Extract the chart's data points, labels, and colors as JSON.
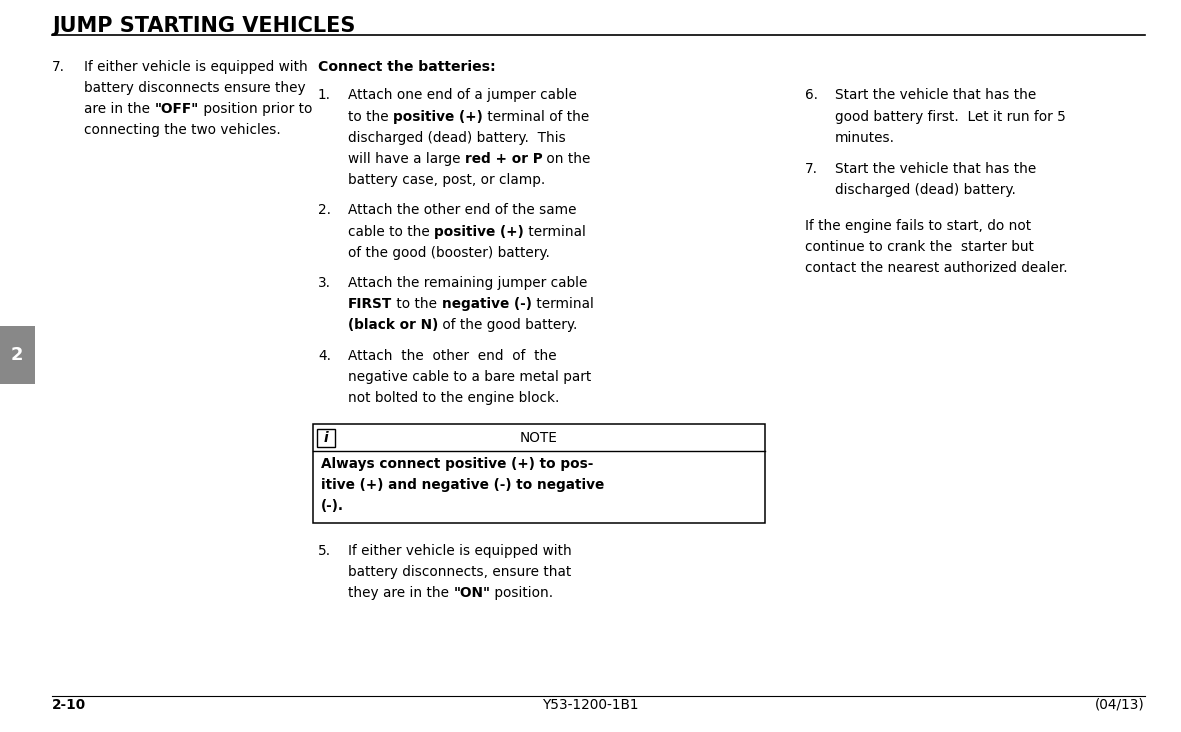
{
  "title": "JUMP STARTING VEHICLES",
  "page_bg": "#ffffff",
  "title_color": "#000000",
  "title_fontsize": 15,
  "body_fontsize": 9.8,
  "tab_label": "2",
  "tab_bg": "#888888",
  "tab_fg": "#ffffff",
  "footer_left": "2-10",
  "footer_center": "Y53-1200-1B1",
  "footer_right": "(04/13)",
  "col2_header": "Connect the batteries:",
  "col3_extra": "If the engine fails to start, do not\ncontinue to crank the  starter but\ncontact the nearest authorized dealer.",
  "note_text_bold": "Always connect positive (+) to pos-\nitive (+) and negative (-) to negative\n(-)."
}
